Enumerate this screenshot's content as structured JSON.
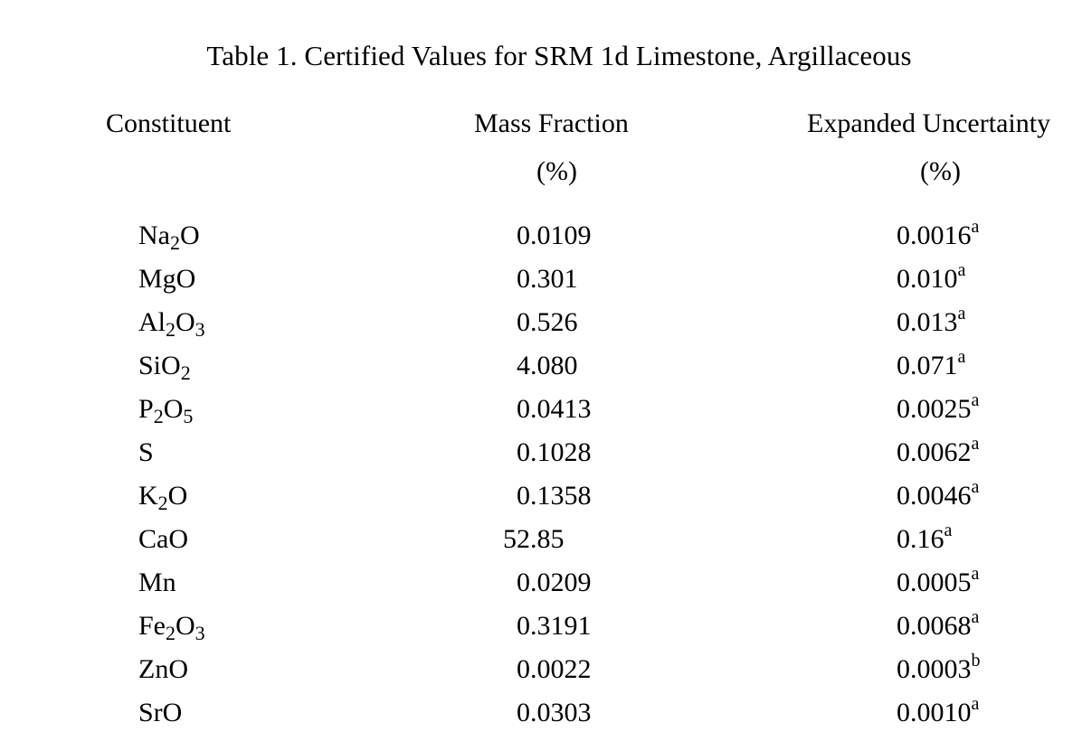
{
  "table": {
    "title": "Table 1.  Certified Values for SRM 1d Limestone, Argillaceous",
    "headers": {
      "constituent": "Constituent",
      "mass_fraction": "Mass Fraction",
      "mass_fraction_unit": "(%)",
      "uncertainty": "Expanded Uncertainty",
      "uncertainty_unit": "(%)"
    },
    "rows": [
      {
        "name_parts": [
          "Na",
          "2",
          "O"
        ],
        "mass": "0.0109",
        "unc": "0.0016",
        "note": "a"
      },
      {
        "name_parts": [
          "MgO"
        ],
        "mass": "0.301",
        "unc": "0.010",
        "note": "a"
      },
      {
        "name_parts": [
          "Al",
          "2",
          "O",
          "3"
        ],
        "mass": "0.526",
        "unc": "0.013",
        "note": "a"
      },
      {
        "name_parts": [
          "SiO",
          "2"
        ],
        "mass": "4.080",
        "unc": "0.071",
        "note": "a"
      },
      {
        "name_parts": [
          "P",
          "2",
          "O",
          "5"
        ],
        "mass": "0.0413",
        "unc": "0.0025",
        "note": "a"
      },
      {
        "name_parts": [
          "S"
        ],
        "mass": "0.1028",
        "unc": "0.0062",
        "note": "a"
      },
      {
        "name_parts": [
          "K",
          "2",
          "O"
        ],
        "mass": "0.1358",
        "unc": "0.0046",
        "note": "a"
      },
      {
        "name_parts": [
          "CaO"
        ],
        "mass": "52.85",
        "unc": "0.16",
        "note": "a"
      },
      {
        "name_parts": [
          "Mn"
        ],
        "mass": "0.0209",
        "unc": "0.0005",
        "note": "a"
      },
      {
        "name_parts": [
          "Fe",
          "2",
          "O",
          "3"
        ],
        "mass": "0.3191",
        "unc": "0.0068",
        "note": "a"
      },
      {
        "name_parts": [
          "ZnO"
        ],
        "mass": "0.0022",
        "unc": "0.0003",
        "note": "b"
      },
      {
        "name_parts": [
          "SrO"
        ],
        "mass": "0.0303",
        "unc": "0.0010",
        "note": "a"
      }
    ]
  }
}
